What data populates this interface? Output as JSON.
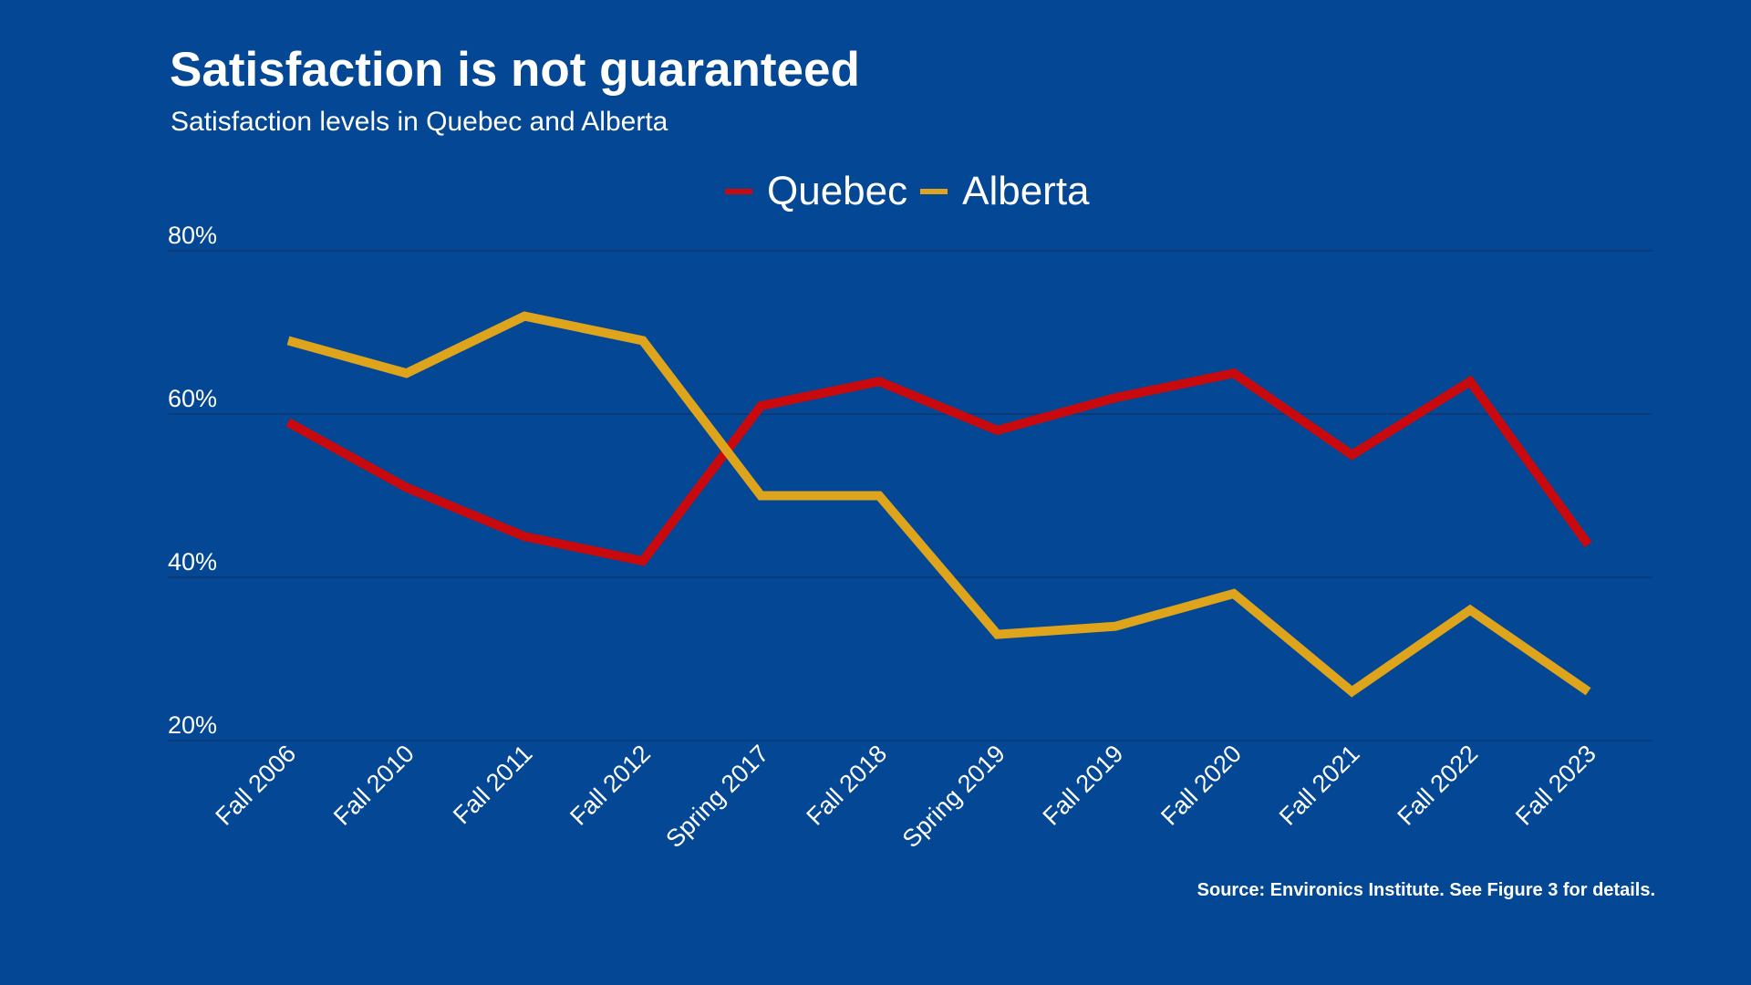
{
  "header": {
    "title": "Satisfaction is not guaranteed",
    "subtitle": "Satisfaction levels in Quebec and Alberta"
  },
  "footer": {
    "source": "Source: Environics Institute. See Figure 3 for details."
  },
  "colors": {
    "background": "#044794",
    "gridline": "#0a3a78",
    "text": "#ffffff"
  },
  "chart_data": {
    "type": "line",
    "title": "Satisfaction is not guaranteed",
    "subtitle": "Satisfaction levels in Quebec and Alberta",
    "xlabel": "",
    "ylabel": "",
    "categories": [
      "Fall 2006",
      "Fall 2010",
      "Fall 2011",
      "Fall 2012",
      "Spring 2017",
      "Fall 2018",
      "Spring 2019",
      "Fall 2019",
      "Fall 2020",
      "Fall 2021",
      "Fall 2022",
      "Fall 2023"
    ],
    "series": [
      {
        "name": "Quebec",
        "color": "#c8090d",
        "values": [
          59,
          51,
          45,
          42,
          61,
          64,
          58,
          62,
          65,
          55,
          64,
          44
        ]
      },
      {
        "name": "Alberta",
        "color": "#dea41b",
        "values": [
          69,
          65,
          72,
          69,
          50,
          50,
          33,
          34,
          38,
          26,
          36,
          26
        ]
      }
    ],
    "ylim": [
      20,
      80
    ],
    "yticks": [
      20,
      40,
      60,
      80
    ],
    "ytick_labels": [
      "20%",
      "40%",
      "60%",
      "80%"
    ],
    "grid": true,
    "legend": "top-center",
    "source": "Source: Environics Institute. See Figure 3 for details."
  }
}
